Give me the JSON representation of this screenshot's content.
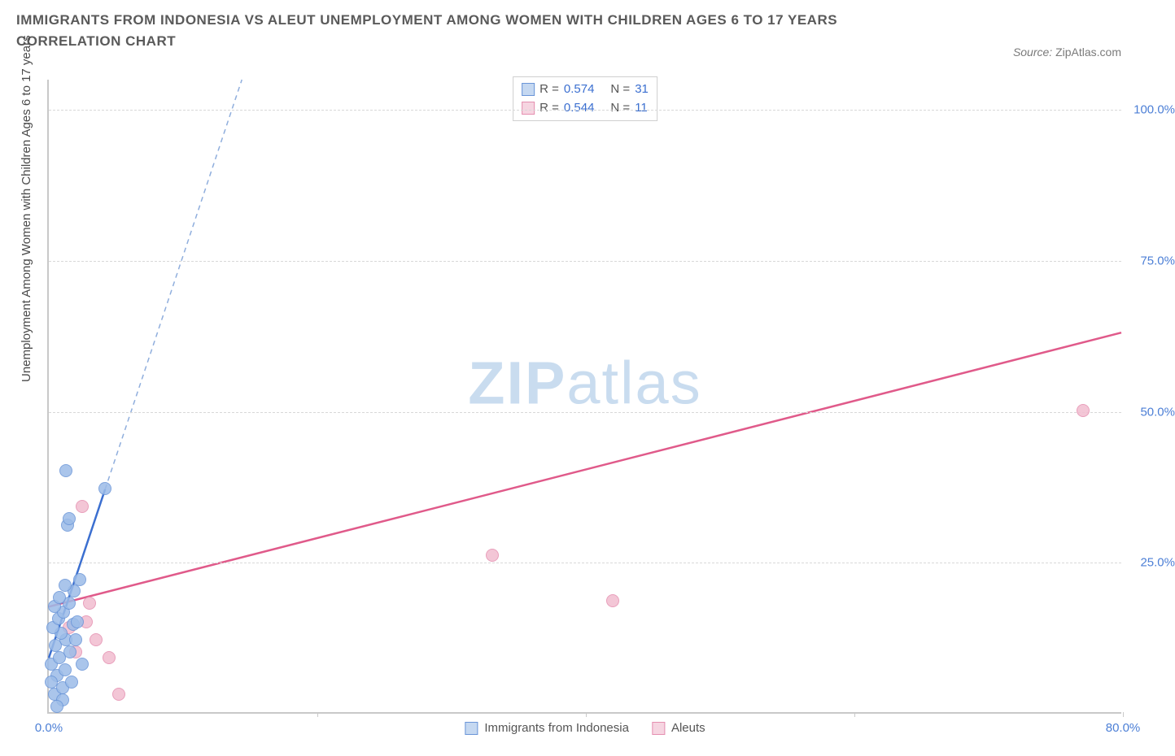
{
  "title": "IMMIGRANTS FROM INDONESIA VS ALEUT UNEMPLOYMENT AMONG WOMEN WITH CHILDREN AGES 6 TO 17 YEARS CORRELATION CHART",
  "source_label": "Source:",
  "source_value": "ZipAtlas.com",
  "ylabel": "Unemployment Among Women with Children Ages 6 to 17 years",
  "watermark": {
    "bold": "ZIP",
    "rest": "atlas",
    "color": "#c9dcef"
  },
  "chart": {
    "type": "scatter",
    "background_color": "#ffffff",
    "grid_color": "#d8d8d8",
    "axis_color": "#c9c9c9",
    "xlim": [
      0,
      80
    ],
    "ylim": [
      0,
      105
    ],
    "yticks": [
      25,
      50,
      75,
      100
    ],
    "ytick_labels": [
      "25.0%",
      "50.0%",
      "75.0%",
      "100.0%"
    ],
    "xtick_positions": [
      0,
      20,
      40,
      60,
      80
    ],
    "xtick_labels": [
      "0.0%",
      "",
      "",
      "",
      "80.0%"
    ],
    "label_color": "#4c7fd6",
    "label_fontsize": 15,
    "ylabel_fontsize": 15,
    "ylabel_color": "#4a4a4a",
    "marker_radius": 8,
    "marker_border_width": 1.5,
    "marker_fill_opacity": 0.35,
    "series": {
      "indonesia": {
        "label": "Immigrants from Indonesia",
        "color_border": "#6a95d8",
        "color_fill": "#9cbce8",
        "trend": {
          "x1": 0,
          "y1": 9,
          "x2": 4.2,
          "y2": 37,
          "extend_x": 18,
          "line_color": "#3b6fd0",
          "line_width": 2.5,
          "dash_color": "#8faedd"
        },
        "stats": {
          "R": "0.574",
          "N": "31"
        },
        "points": [
          {
            "x": 0.4,
            "y": 3
          },
          {
            "x": 1.0,
            "y": 4
          },
          {
            "x": 0.6,
            "y": 6
          },
          {
            "x": 1.2,
            "y": 7
          },
          {
            "x": 0.2,
            "y": 8
          },
          {
            "x": 0.8,
            "y": 9
          },
          {
            "x": 1.6,
            "y": 10
          },
          {
            "x": 0.5,
            "y": 11
          },
          {
            "x": 1.3,
            "y": 12
          },
          {
            "x": 0.9,
            "y": 13
          },
          {
            "x": 0.3,
            "y": 14
          },
          {
            "x": 1.8,
            "y": 14.5
          },
          {
            "x": 0.7,
            "y": 15.5
          },
          {
            "x": 1.1,
            "y": 16.5
          },
          {
            "x": 0.4,
            "y": 17.5
          },
          {
            "x": 2.1,
            "y": 15
          },
          {
            "x": 1.5,
            "y": 18
          },
          {
            "x": 0.8,
            "y": 19
          },
          {
            "x": 1.9,
            "y": 20
          },
          {
            "x": 1.2,
            "y": 21
          },
          {
            "x": 2.3,
            "y": 22
          },
          {
            "x": 1.0,
            "y": 2
          },
          {
            "x": 1.7,
            "y": 5
          },
          {
            "x": 2.5,
            "y": 8
          },
          {
            "x": 1.4,
            "y": 31
          },
          {
            "x": 1.5,
            "y": 32
          },
          {
            "x": 4.2,
            "y": 37
          },
          {
            "x": 1.3,
            "y": 40
          },
          {
            "x": 0.6,
            "y": 1
          },
          {
            "x": 2.0,
            "y": 12
          },
          {
            "x": 0.2,
            "y": 5
          }
        ]
      },
      "aleuts": {
        "label": "Aleuts",
        "color_border": "#e58fb0",
        "color_fill": "#f2bdd0",
        "trend": {
          "x1": 0,
          "y1": 17.5,
          "x2": 80,
          "y2": 63,
          "line_color": "#e05a8a",
          "line_width": 2.5
        },
        "stats": {
          "R": "0.544",
          "N": "11"
        },
        "points": [
          {
            "x": 2.0,
            "y": 10
          },
          {
            "x": 3.5,
            "y": 12
          },
          {
            "x": 1.5,
            "y": 14
          },
          {
            "x": 2.8,
            "y": 15
          },
          {
            "x": 4.5,
            "y": 9
          },
          {
            "x": 3.0,
            "y": 18
          },
          {
            "x": 5.2,
            "y": 3
          },
          {
            "x": 2.5,
            "y": 34
          },
          {
            "x": 33,
            "y": 26
          },
          {
            "x": 42,
            "y": 18.5
          },
          {
            "x": 77,
            "y": 50
          }
        ]
      }
    },
    "legend_top": {
      "rows": [
        {
          "swatch_fill": "#c5d8f1",
          "swatch_border": "#6a95d8",
          "R": "0.574",
          "N": "31"
        },
        {
          "swatch_fill": "#f6d5e1",
          "swatch_border": "#e58fb0",
          "R": "0.544",
          "N": "11"
        }
      ],
      "eq_label_R": "R  =",
      "eq_label_N": "N  ="
    },
    "legend_bottom": [
      {
        "swatch_fill": "#c5d8f1",
        "swatch_border": "#6a95d8",
        "label": "Immigrants from Indonesia"
      },
      {
        "swatch_fill": "#f6d5e1",
        "swatch_border": "#e58fb0",
        "label": "Aleuts"
      }
    ]
  }
}
